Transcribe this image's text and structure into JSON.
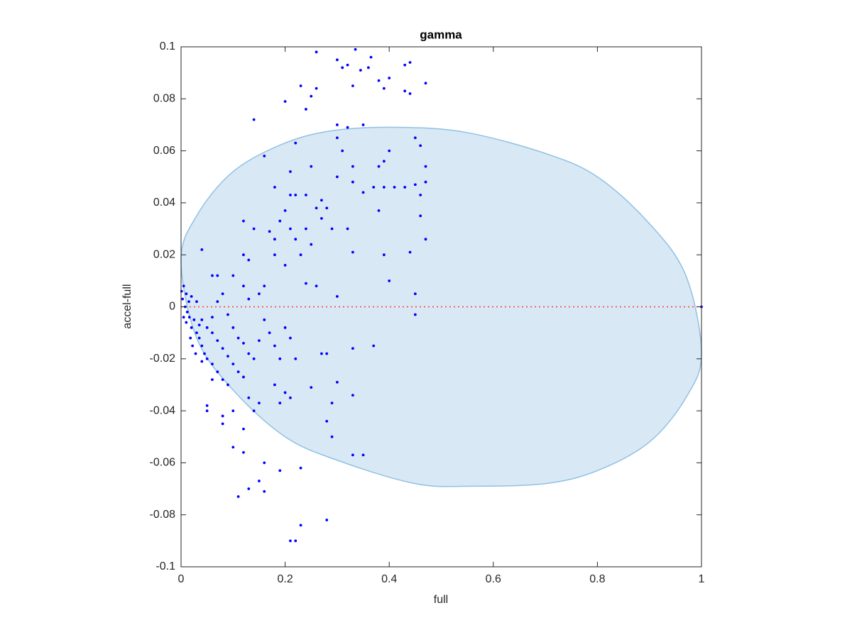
{
  "chart_data": {
    "type": "scatter",
    "title": "gamma",
    "x_label": "full",
    "y_label": "accel-full",
    "xlim": [
      0,
      1
    ],
    "ylim": [
      -0.1,
      0.1
    ],
    "xticks": [
      0,
      0.2,
      0.4,
      0.6,
      0.8,
      1
    ],
    "yticks": [
      -0.1,
      -0.08,
      -0.06,
      -0.04,
      -0.02,
      0,
      0.02,
      0.04,
      0.06,
      0.08,
      0.1
    ],
    "grid": false,
    "region": {
      "color": "#d9e8f5",
      "edge_color": "#8fc1e3",
      "x": [
        0,
        0.03,
        0.1,
        0.2,
        0.3,
        0.43,
        0.55,
        0.7,
        0.8,
        0.9,
        0.97,
        1,
        0.97,
        0.9,
        0.8,
        0.7,
        0.56,
        0.45,
        0.3,
        0.2,
        0.1,
        0.03
      ],
      "y": [
        0.018,
        0.035,
        0.052,
        0.063,
        0.068,
        0.069,
        0.067,
        0.059,
        0.05,
        0.032,
        0.012,
        -0.018,
        -0.035,
        -0.052,
        -0.063,
        -0.068,
        -0.069,
        -0.068,
        -0.059,
        -0.05,
        -0.032,
        -0.012
      ]
    },
    "hline": {
      "y": 0,
      "color": "#ff3b3b"
    },
    "series": [
      {
        "color": "#0000ff",
        "x": [
          0.26,
          0.3,
          0.31,
          0.335,
          0.345,
          0.36,
          0.365,
          0.32,
          0.44,
          0.43,
          0.47,
          0.38,
          0.4,
          0.23,
          0.25,
          0.26,
          0.24,
          0.2,
          0.14,
          0.33,
          0.39,
          0.43,
          0.44,
          0.3,
          0.32,
          0.35,
          0.22,
          0.16,
          0.3,
          0.31,
          0.4,
          0.39,
          0.45,
          0.46,
          0.33,
          0.38,
          0.25,
          0.21,
          0.3,
          0.33,
          0.37,
          0.47,
          0.47,
          0.39,
          0.41,
          0.43,
          0.45,
          0.46,
          0.35,
          0.18,
          0.22,
          0.21,
          0.24,
          0.27,
          0.26,
          0.28,
          0.2,
          0.27,
          0.19,
          0.12,
          0.14,
          0.21,
          0.24,
          0.29,
          0.32,
          0.38,
          0.46,
          0.47,
          0.17,
          0.18,
          0.22,
          0.25,
          0.33,
          0.44,
          0.39,
          0.4,
          0.23,
          0.18,
          0.2,
          0.12,
          0.13,
          0.07,
          0.06,
          0.1,
          0.04,
          0.24,
          0.26,
          0.3,
          0.45,
          0.45,
          0.37,
          0.33,
          0.27,
          0.28,
          0.22,
          0.25,
          0.3,
          0.33,
          0.29,
          0.28,
          0.29,
          0.33,
          0.35,
          0.21,
          0.2,
          0.18,
          0.19,
          0.15,
          0.13,
          0.14,
          0.1,
          0.08,
          0.05,
          0.05,
          0.08,
          0.12,
          0.1,
          0.12,
          0.16,
          0.19,
          0.23,
          0.15,
          0.13,
          0.16,
          0.11,
          0.28,
          0.23,
          0.21,
          0.22,
          0.005,
          0.01,
          0.003,
          0.008,
          0.012,
          0.02,
          0.015,
          0.005,
          0.01,
          0.02,
          0.025,
          0.03,
          0.035,
          0.04,
          0.045,
          0.05,
          0.04,
          0.06,
          0.03,
          0.04,
          0.05,
          0.06,
          0.07,
          0.08,
          0.09,
          0.1,
          0.06,
          0.07,
          0.08,
          0.09,
          0.1,
          0.11,
          0.12,
          0.13,
          0.14,
          0.15,
          0.16,
          0.17,
          0.18,
          0.19,
          0.2,
          0.21,
          0.15,
          0.16,
          0.13,
          0.12,
          0.07,
          0.08,
          0.06,
          0.09,
          0.12,
          0.11,
          0.018,
          0.022,
          0.028,
          0.001,
          0.016,
          0.035,
          1
        ],
        "values": [
          0.098,
          0.095,
          0.092,
          0.099,
          0.091,
          0.092,
          0.096,
          0.093,
          0.094,
          0.093,
          0.086,
          0.087,
          0.088,
          0.085,
          0.081,
          0.084,
          0.076,
          0.079,
          0.072,
          0.085,
          0.084,
          0.083,
          0.082,
          0.07,
          0.069,
          0.07,
          0.063,
          0.058,
          0.065,
          0.06,
          0.06,
          0.056,
          0.065,
          0.062,
          0.054,
          0.054,
          0.054,
          0.052,
          0.05,
          0.048,
          0.046,
          0.054,
          0.048,
          0.046,
          0.046,
          0.046,
          0.047,
          0.043,
          0.044,
          0.046,
          0.043,
          0.043,
          0.043,
          0.041,
          0.038,
          0.038,
          0.037,
          0.034,
          0.033,
          0.033,
          0.03,
          0.03,
          0.03,
          0.03,
          0.03,
          0.037,
          0.035,
          0.026,
          0.029,
          0.026,
          0.026,
          0.024,
          0.021,
          0.021,
          0.02,
          0.01,
          0.02,
          0.02,
          0.016,
          0.02,
          0.018,
          0.012,
          0.012,
          0.012,
          0.022,
          0.009,
          0.008,
          0.004,
          0.005,
          -0.003,
          -0.015,
          -0.016,
          -0.018,
          -0.018,
          -0.02,
          -0.031,
          -0.029,
          -0.034,
          -0.037,
          -0.044,
          -0.05,
          -0.057,
          -0.057,
          -0.035,
          -0.033,
          -0.03,
          -0.037,
          -0.037,
          -0.035,
          -0.04,
          -0.04,
          -0.042,
          -0.038,
          -0.04,
          -0.045,
          -0.047,
          -0.054,
          -0.056,
          -0.06,
          -0.063,
          -0.062,
          -0.067,
          -0.07,
          -0.071,
          -0.073,
          -0.082,
          -0.084,
          -0.09,
          -0.09,
          0.008,
          0.005,
          0.003,
          0,
          -0.002,
          0.004,
          0.002,
          -0.004,
          -0.006,
          -0.008,
          -0.005,
          -0.01,
          -0.012,
          -0.015,
          -0.018,
          -0.02,
          -0.021,
          -0.022,
          0.002,
          -0.005,
          -0.008,
          -0.01,
          -0.013,
          -0.016,
          -0.019,
          -0.022,
          -0.004,
          0.002,
          0.005,
          -0.003,
          -0.008,
          -0.012,
          -0.014,
          -0.018,
          -0.02,
          -0.013,
          -0.005,
          -0.01,
          -0.015,
          -0.02,
          -0.008,
          -0.012,
          0.005,
          0.008,
          0.003,
          0.008,
          -0.025,
          -0.028,
          -0.028,
          -0.03,
          -0.027,
          -0.025,
          -0.012,
          -0.015,
          -0.018,
          0.006,
          -0.004,
          -0.007,
          0
        ]
      }
    ]
  }
}
